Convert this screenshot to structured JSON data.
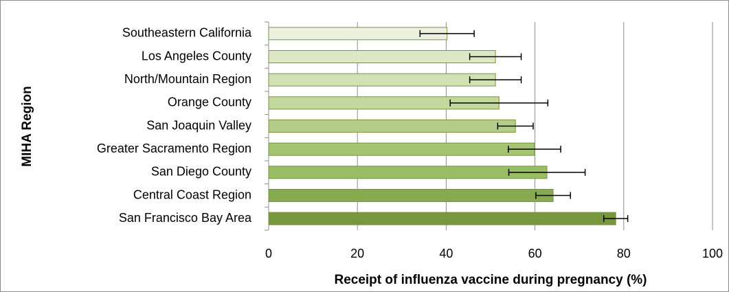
{
  "chart_data": {
    "type": "bar",
    "orientation": "horizontal",
    "xlabel": "Receipt of influenza vaccine during pregnancy (%)",
    "ylabel": "MIHA Region",
    "categories": [
      "Southeastern California",
      "Los Angeles County",
      "North/Mountain Region",
      "Orange County",
      "San Joaquin Valley",
      "Greater Sacramento Region",
      "San Diego County",
      "Central Coast Region",
      "San Francisco Bay Area"
    ],
    "values": [
      40.2,
      51.1,
      51.1,
      51.9,
      55.6,
      59.9,
      62.7,
      64.1,
      78.2
    ],
    "errors": [
      6.1,
      5.8,
      5.8,
      11,
      4,
      5.9,
      8.6,
      3.9,
      2.7
    ],
    "colors": [
      "#ebf1de",
      "#dce8c4",
      "#d0e1b2",
      "#c2d89d",
      "#b2ce88",
      "#a4c472",
      "#98bd62",
      "#86aa4e",
      "#77963e"
    ],
    "xlim": [
      0,
      100
    ],
    "xticks": [
      0,
      20,
      40,
      60,
      80,
      100
    ],
    "grid": true
  }
}
